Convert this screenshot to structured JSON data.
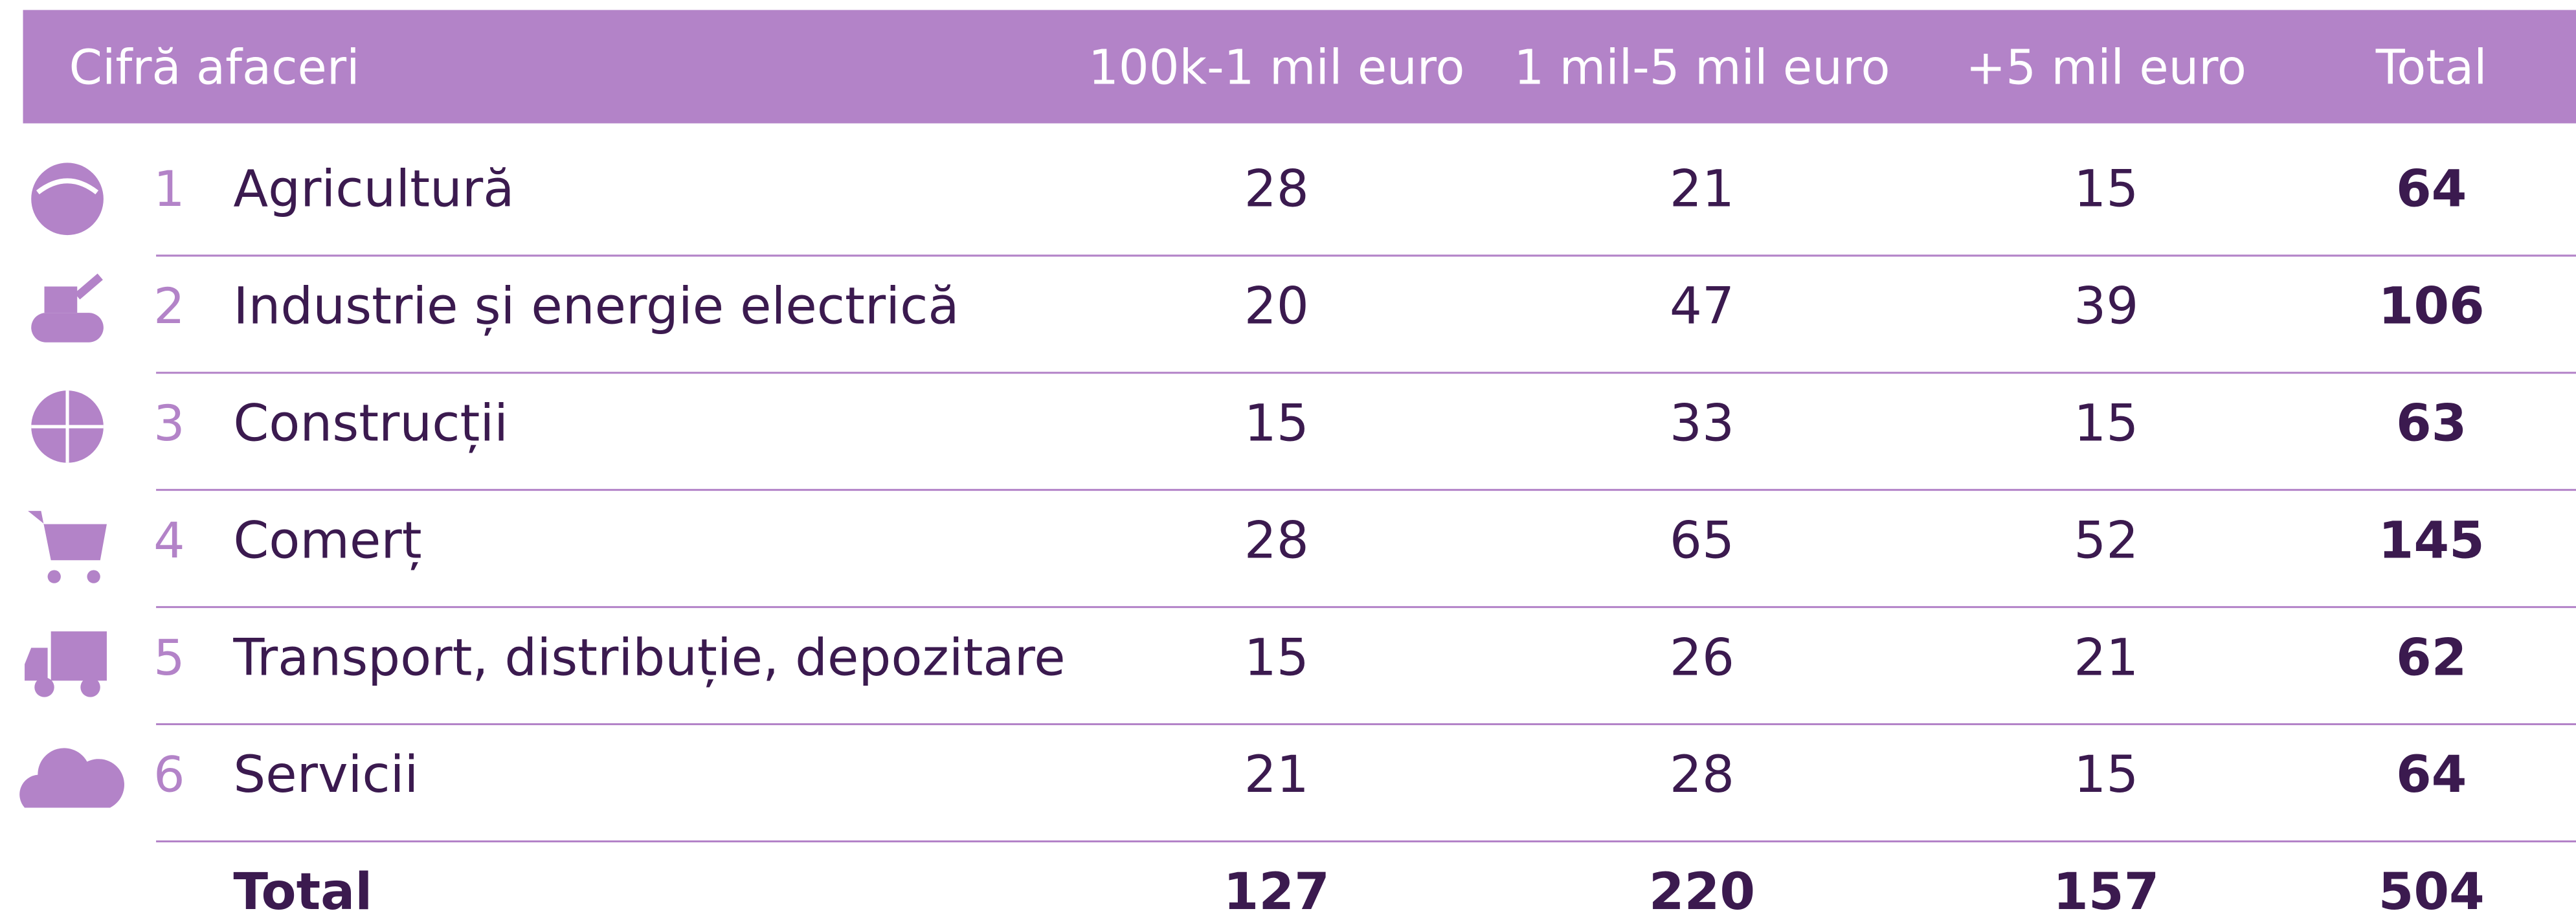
{
  "header": {
    "label": "Cifră afaceri",
    "columns": [
      "100k-1 mil euro",
      "1 mil-5 mil euro",
      "+5 mil euro",
      "Total"
    ]
  },
  "rows": [
    {
      "number": 1,
      "label": "Agricultură",
      "values": [
        28,
        21,
        15
      ],
      "total": 64
    },
    {
      "number": 2,
      "label": "Industrie și energie electrică",
      "values": [
        20,
        47,
        39
      ],
      "total": 106
    },
    {
      "number": 3,
      "label": "Construcții",
      "values": [
        15,
        33,
        15
      ],
      "total": 63
    },
    {
      "number": 4,
      "label": "Comerț",
      "values": [
        28,
        65,
        52
      ],
      "total": 145
    },
    {
      "number": 5,
      "label": "Transport, distribuție, depozitare",
      "values": [
        15,
        26,
        21
      ],
      "total": 62
    },
    {
      "number": 6,
      "label": "Servicii",
      "values": [
        21,
        28,
        15
      ],
      "total": 64
    }
  ],
  "total_row": {
    "label": "Total",
    "values": [
      127,
      220,
      157
    ],
    "total": 504
  }
}
